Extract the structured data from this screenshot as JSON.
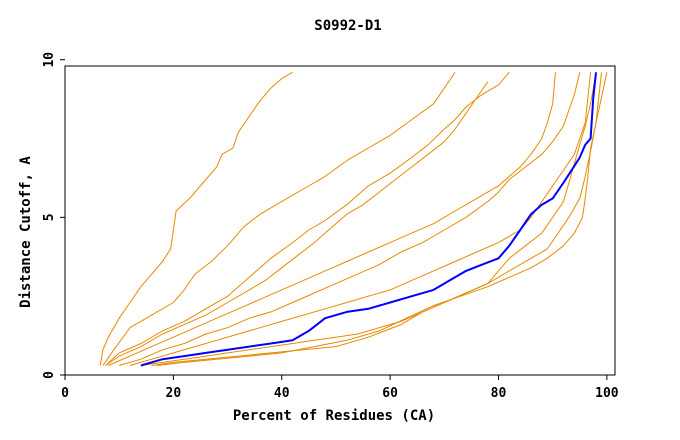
{
  "chart_data": {
    "type": "line",
    "title": "S0992-D1",
    "xlabel": "Percent of Residues (CA)",
    "ylabel": "Distance Cutoff, A",
    "xlim": [
      0,
      101.5
    ],
    "ylim": [
      0,
      9.8
    ],
    "xticks": [
      0,
      20,
      40,
      60,
      80,
      100
    ],
    "yticks": [
      0,
      5,
      10
    ],
    "grid": false,
    "colors": {
      "others": "#e68a00",
      "highlight": "#0000ff"
    },
    "series": [
      {
        "color": "orange",
        "x": [
          6.5,
          7,
          8,
          10,
          12,
          14,
          16,
          18,
          19.5,
          20,
          20.5,
          23,
          26,
          28,
          29,
          31,
          32,
          34,
          36,
          38,
          40,
          42
        ],
        "y": [
          0.3,
          0.8,
          1.2,
          1.8,
          2.3,
          2.8,
          3.2,
          3.6,
          4.0,
          4.6,
          5.2,
          5.6,
          6.2,
          6.6,
          7.0,
          7.2,
          7.7,
          8.2,
          8.7,
          9.1,
          9.4,
          9.6
        ]
      },
      {
        "color": "orange",
        "x": [
          7,
          9,
          12,
          16,
          20,
          22,
          24,
          27,
          30,
          33,
          36,
          40,
          44,
          48,
          52,
          56,
          60,
          64,
          68,
          70,
          72
        ],
        "y": [
          0.3,
          0.8,
          1.5,
          1.9,
          2.3,
          2.7,
          3.2,
          3.6,
          4.1,
          4.7,
          5.1,
          5.5,
          5.9,
          6.3,
          6.8,
          7.2,
          7.6,
          8.1,
          8.6,
          9.1,
          9.6
        ]
      },
      {
        "color": "orange",
        "x": [
          7.5,
          10,
          14,
          18,
          22,
          26,
          30,
          34,
          38,
          42,
          45,
          48,
          52,
          56,
          60,
          64,
          67,
          70,
          72,
          74,
          77,
          80,
          82
        ],
        "y": [
          0.3,
          0.7,
          1.0,
          1.4,
          1.7,
          2.1,
          2.5,
          3.1,
          3.7,
          4.2,
          4.6,
          4.9,
          5.4,
          6.0,
          6.4,
          6.9,
          7.3,
          7.8,
          8.1,
          8.5,
          8.9,
          9.2,
          9.6
        ]
      },
      {
        "color": "orange",
        "x": [
          7.5,
          10,
          14,
          18,
          22,
          26,
          30,
          34,
          37,
          40,
          43,
          46,
          48,
          50,
          52,
          55,
          58,
          61,
          64,
          67,
          70,
          72,
          74,
          76,
          78
        ],
        "y": [
          0.3,
          0.6,
          0.9,
          1.3,
          1.6,
          1.9,
          2.3,
          2.7,
          3.0,
          3.4,
          3.8,
          4.2,
          4.5,
          4.8,
          5.1,
          5.4,
          5.8,
          6.2,
          6.6,
          7.0,
          7.4,
          7.8,
          8.3,
          8.8,
          9.3
        ]
      },
      {
        "color": "orange",
        "x": [
          8,
          12,
          16,
          20,
          24,
          28,
          32,
          36,
          40,
          44,
          48,
          52,
          56,
          60,
          64,
          68,
          72,
          76,
          80,
          82,
          84,
          86,
          88,
          89,
          90,
          90.5
        ],
        "y": [
          0.3,
          0.6,
          0.9,
          1.2,
          1.5,
          1.8,
          2.1,
          2.4,
          2.7,
          3.0,
          3.3,
          3.6,
          3.9,
          4.2,
          4.5,
          4.8,
          5.2,
          5.6,
          6.0,
          6.3,
          6.6,
          7.0,
          7.5,
          8.0,
          8.6,
          9.6
        ]
      },
      {
        "color": "orange",
        "x": [
          10,
          14,
          18,
          22,
          26,
          30,
          34,
          38,
          42,
          46,
          50,
          54,
          58,
          62,
          66,
          70,
          74,
          78,
          80,
          82,
          85,
          88,
          90,
          92,
          93,
          94,
          95
        ],
        "y": [
          0.3,
          0.5,
          0.8,
          1.0,
          1.3,
          1.5,
          1.8,
          2.0,
          2.3,
          2.6,
          2.9,
          3.2,
          3.5,
          3.9,
          4.2,
          4.6,
          5.0,
          5.5,
          5.8,
          6.2,
          6.6,
          7.0,
          7.4,
          7.9,
          8.4,
          8.9,
          9.6
        ]
      },
      {
        "color": "orange",
        "x": [
          12,
          16,
          20,
          24,
          28,
          32,
          36,
          40,
          44,
          48,
          52,
          56,
          60,
          64,
          68,
          72,
          76,
          80,
          84,
          86,
          88,
          90,
          92,
          94,
          95,
          96,
          97
        ],
        "y": [
          0.3,
          0.5,
          0.7,
          0.9,
          1.1,
          1.3,
          1.5,
          1.7,
          1.9,
          2.1,
          2.3,
          2.5,
          2.7,
          3.0,
          3.3,
          3.6,
          3.9,
          4.2,
          4.6,
          5.0,
          5.5,
          6.0,
          6.5,
          7.0,
          7.5,
          8.0,
          9.6
        ]
      },
      {
        "color": "orange",
        "x": [
          14,
          18,
          22,
          26,
          30,
          34,
          38,
          42,
          46,
          50,
          54,
          58,
          62,
          66,
          70,
          74,
          78,
          80,
          82,
          85,
          88,
          90,
          92,
          93,
          94,
          95,
          96,
          97,
          98
        ],
        "y": [
          0.3,
          0.4,
          0.5,
          0.6,
          0.7,
          0.8,
          0.9,
          1.0,
          1.1,
          1.2,
          1.3,
          1.5,
          1.7,
          2.0,
          2.3,
          2.6,
          2.9,
          3.3,
          3.7,
          4.1,
          4.5,
          5.0,
          5.5,
          6.1,
          6.7,
          7.3,
          7.9,
          8.6,
          9.6
        ]
      },
      {
        "color": "orange",
        "x": [
          16,
          20,
          26,
          32,
          38,
          44,
          50,
          56,
          62,
          66,
          70,
          74,
          78,
          82,
          86,
          89,
          91,
          93,
          95,
          96,
          97,
          98,
          99
        ],
        "y": [
          0.3,
          0.4,
          0.5,
          0.6,
          0.7,
          0.8,
          0.9,
          1.2,
          1.6,
          2.0,
          2.3,
          2.6,
          2.9,
          3.3,
          3.7,
          4.0,
          4.5,
          5.0,
          5.6,
          6.3,
          7.1,
          8.0,
          9.6
        ]
      },
      {
        "color": "orange",
        "x": [
          17,
          22,
          28,
          34,
          40,
          46,
          52,
          58,
          63,
          68,
          73,
          78,
          82,
          86,
          89,
          92,
          94,
          95.5,
          96,
          96.5,
          97,
          98,
          99,
          100
        ],
        "y": [
          0.3,
          0.4,
          0.5,
          0.6,
          0.7,
          0.9,
          1.1,
          1.4,
          1.8,
          2.2,
          2.5,
          2.8,
          3.1,
          3.4,
          3.7,
          4.1,
          4.5,
          5.0,
          5.6,
          6.3,
          7.2,
          8.0,
          8.8,
          9.6
        ]
      },
      {
        "color": "blue",
        "x": [
          14,
          18,
          22,
          26,
          30,
          34,
          38,
          42,
          45,
          48,
          52,
          56,
          60,
          64,
          68,
          71,
          74,
          77,
          80,
          82,
          84,
          86,
          88,
          90,
          92,
          93.5,
          95,
          96,
          97,
          97.5,
          98
        ],
        "y": [
          0.3,
          0.5,
          0.6,
          0.7,
          0.8,
          0.9,
          1.0,
          1.1,
          1.4,
          1.8,
          2.0,
          2.1,
          2.3,
          2.5,
          2.7,
          3.0,
          3.3,
          3.5,
          3.7,
          4.1,
          4.6,
          5.1,
          5.4,
          5.6,
          6.1,
          6.5,
          6.9,
          7.3,
          7.5,
          8.8,
          9.6
        ]
      }
    ]
  }
}
